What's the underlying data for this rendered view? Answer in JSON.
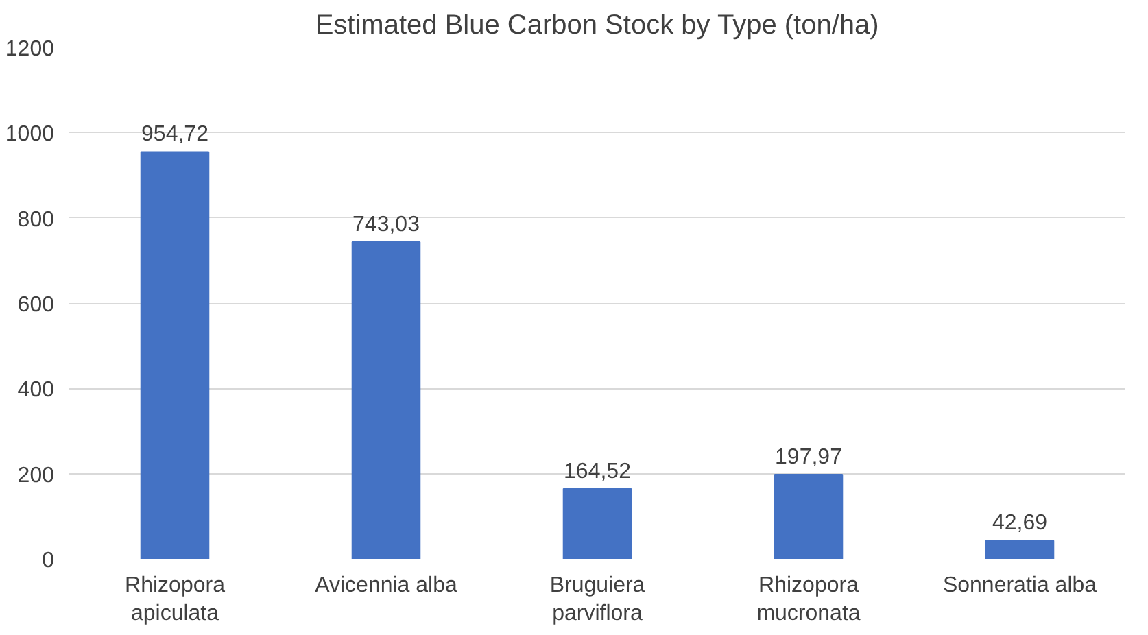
{
  "chart_data": {
    "type": "bar",
    "title": "Estimated Blue Carbon Stock by Type (ton/ha)",
    "categories": [
      "Rhizopora apiculata",
      "Avicennia alba",
      "Bruguiera parviflora",
      "Rhizopora mucronata",
      "Sonneratia alba"
    ],
    "values": [
      954.72,
      743.03,
      164.52,
      197.97,
      42.69
    ],
    "value_labels": [
      "954,72",
      "743,03",
      "164,52",
      "197,97",
      "42,69"
    ],
    "color": "#4472c4",
    "ylim": [
      0,
      1200
    ],
    "yticks": [
      0,
      200,
      400,
      600,
      800,
      1000,
      1200
    ],
    "grid": "y"
  }
}
